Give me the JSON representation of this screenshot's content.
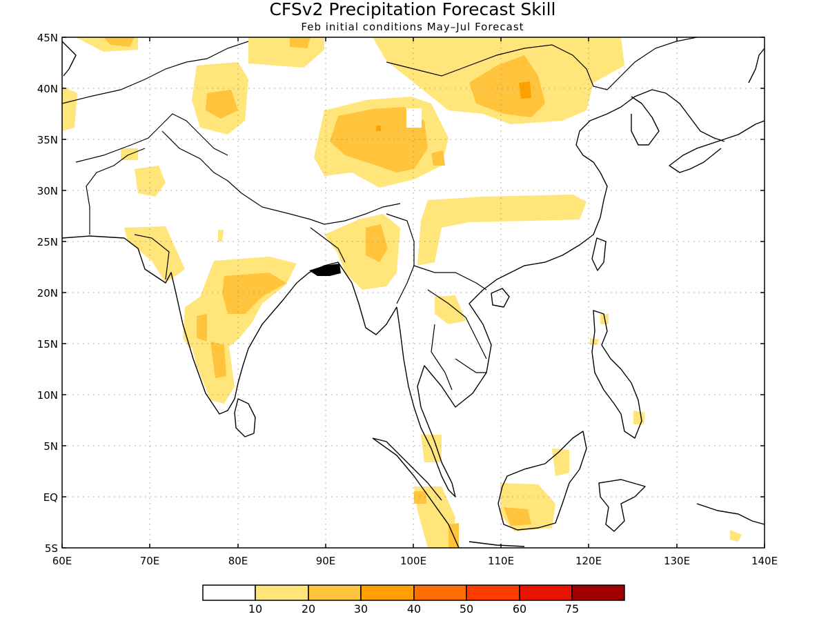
{
  "title": "CFSv2 Precipitation Forecast Skill",
  "subtitle": "Feb initial conditions   May–Jul Forecast",
  "map": {
    "lon_range": [
      60,
      140
    ],
    "lat_range": [
      -5,
      45
    ],
    "lon_ticks": [
      "60E",
      "70E",
      "80E",
      "90E",
      "100E",
      "110E",
      "120E",
      "130E",
      "140E"
    ],
    "lat_ticks": [
      "45N",
      "40N",
      "35N",
      "30N",
      "25N",
      "20N",
      "15N",
      "10N",
      "5N",
      "EQ",
      "5S"
    ],
    "colors": {
      "level_10": "#ffe57a",
      "level_20": "#ffc33c",
      "level_30": "#ffa000",
      "level_40": "#ff6e00",
      "level_50": "#ff3c00",
      "level_60": "#e61400",
      "level_75": "#a00000"
    }
  },
  "colorbar": {
    "labels": [
      "10",
      "20",
      "30",
      "40",
      "50",
      "60",
      "75"
    ],
    "colors": [
      "#ffffff",
      "#ffe57a",
      "#ffc33c",
      "#ffa000",
      "#ff6e00",
      "#ff3c00",
      "#e61400",
      "#a00000"
    ]
  }
}
